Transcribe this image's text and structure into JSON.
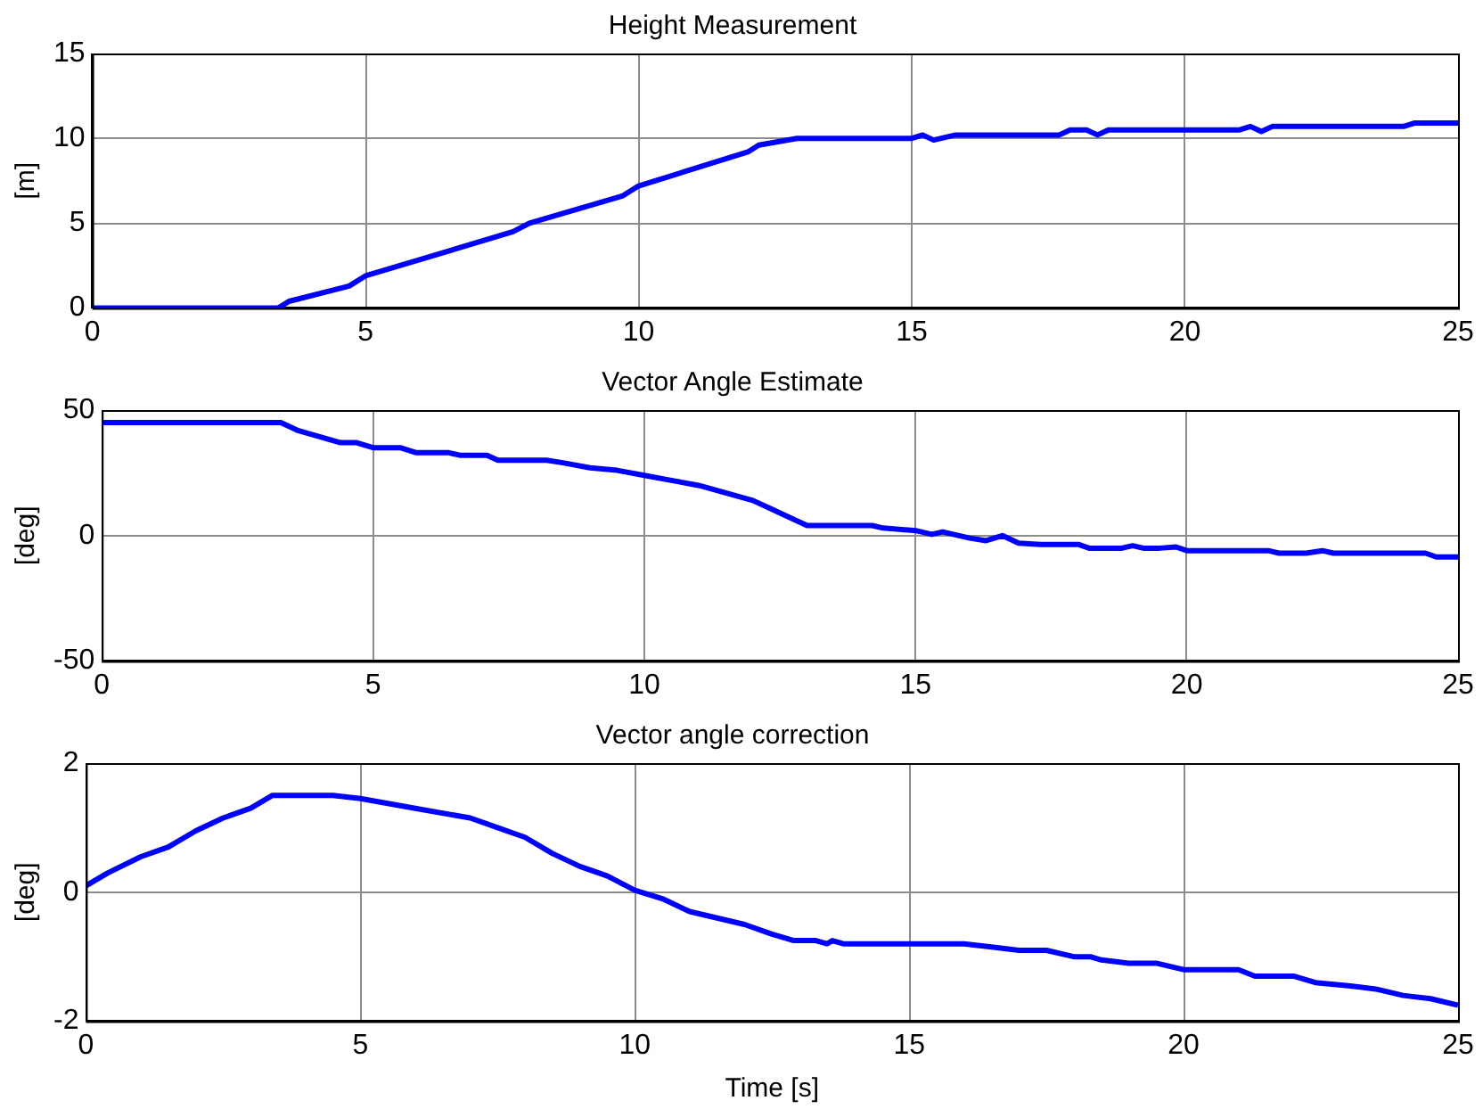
{
  "chart_data": [
    {
      "type": "line",
      "title": "Height Measurement",
      "ylabel": "[m]",
      "xlim": [
        0,
        25
      ],
      "xticks": [
        0,
        5,
        10,
        15,
        20,
        25
      ],
      "ylim": [
        0,
        15
      ],
      "yticks": [
        0,
        5,
        10,
        15
      ],
      "grid": true,
      "marker": "none",
      "line_style": "solid",
      "series": [
        {
          "color": "#0000ff",
          "x": [
            0,
            3.4,
            3.6,
            4.7,
            5,
            7.7,
            8,
            9.7,
            10,
            12,
            12.2,
            12.9,
            15,
            15.2,
            15.4,
            15.8,
            17.7,
            17.9,
            18.2,
            18.4,
            18.6,
            21,
            21.2,
            21.4,
            21.6,
            24,
            24.2,
            25
          ],
          "values": [
            0,
            0,
            0.4,
            1.3,
            1.9,
            4.5,
            5,
            6.6,
            7.2,
            9.2,
            9.6,
            10,
            10,
            10.2,
            9.9,
            10.2,
            10.2,
            10.5,
            10.5,
            10.2,
            10.5,
            10.5,
            10.7,
            10.4,
            10.7,
            10.7,
            10.9,
            10.9
          ]
        }
      ]
    },
    {
      "type": "line",
      "title": "Vector Angle Estimate",
      "ylabel": "[deg]",
      "xlim": [
        0,
        25
      ],
      "xticks": [
        0,
        5,
        10,
        15,
        20,
        25
      ],
      "ylim": [
        -50,
        50
      ],
      "yticks": [
        -50,
        0,
        50
      ],
      "grid": true,
      "marker": "none",
      "line_style": "solid",
      "series": [
        {
          "color": "#0000ff",
          "x": [
            0,
            3.3,
            3.6,
            4.4,
            4.7,
            5,
            5.5,
            5.8,
            6.4,
            6.6,
            7.1,
            7.3,
            8.2,
            8.5,
            9,
            9.5,
            10,
            10.5,
            11,
            11.5,
            12,
            12.3,
            12.6,
            13,
            14.2,
            14.4,
            15,
            15.3,
            15.5,
            16,
            16.3,
            16.6,
            16.9,
            17.3,
            18,
            18.2,
            18.8,
            19,
            19.2,
            19.5,
            19.8,
            20,
            21.5,
            21.7,
            22.2,
            22.5,
            22.7,
            24.4,
            24.6,
            25
          ],
          "values": [
            45,
            45,
            42,
            37,
            37,
            35,
            35,
            33,
            33,
            32,
            32,
            30,
            30,
            29,
            27,
            26,
            24,
            22,
            20,
            17,
            14,
            11,
            8,
            4,
            4,
            3,
            2,
            0.5,
            1.5,
            -1,
            -2,
            0,
            -3,
            -3.5,
            -3.5,
            -5,
            -5,
            -4,
            -5,
            -5,
            -4.5,
            -6,
            -6,
            -7,
            -7,
            -6,
            -7,
            -7,
            -8.5,
            -8.5
          ]
        }
      ]
    },
    {
      "type": "line",
      "title": "Vector angle correction",
      "ylabel": "[deg]",
      "xlabel": "Time [s]",
      "xlim": [
        0,
        25
      ],
      "xticks": [
        0,
        5,
        10,
        15,
        20,
        25
      ],
      "ylim": [
        -2,
        2
      ],
      "yticks": [
        -2,
        0,
        2
      ],
      "grid": true,
      "marker": "none",
      "line_style": "solid",
      "series": [
        {
          "color": "#0000ff",
          "x": [
            0,
            0.4,
            1,
            1.5,
            2,
            2.5,
            3,
            3.4,
            4.5,
            5,
            6,
            7,
            7.5,
            8,
            8.5,
            9,
            9.5,
            10,
            10.5,
            11,
            12,
            12.5,
            12.9,
            13.3,
            13.5,
            13.6,
            13.8,
            16,
            16.5,
            17,
            17.5,
            18,
            18.3,
            18.5,
            19,
            19.5,
            20,
            21,
            21.3,
            22,
            22.4,
            23,
            23.5,
            24,
            24.5,
            25
          ],
          "values": [
            0.1,
            0.3,
            0.55,
            0.7,
            0.95,
            1.15,
            1.3,
            1.5,
            1.5,
            1.45,
            1.3,
            1.15,
            1,
            0.85,
            0.6,
            0.4,
            0.25,
            0.03,
            -0.1,
            -0.3,
            -0.5,
            -0.65,
            -0.75,
            -0.75,
            -0.8,
            -0.75,
            -0.8,
            -0.8,
            -0.85,
            -0.9,
            -0.9,
            -1,
            -1,
            -1.05,
            -1.1,
            -1.1,
            -1.2,
            -1.2,
            -1.3,
            -1.3,
            -1.4,
            -1.45,
            -1.5,
            -1.6,
            -1.65,
            -1.75
          ]
        }
      ]
    }
  ]
}
